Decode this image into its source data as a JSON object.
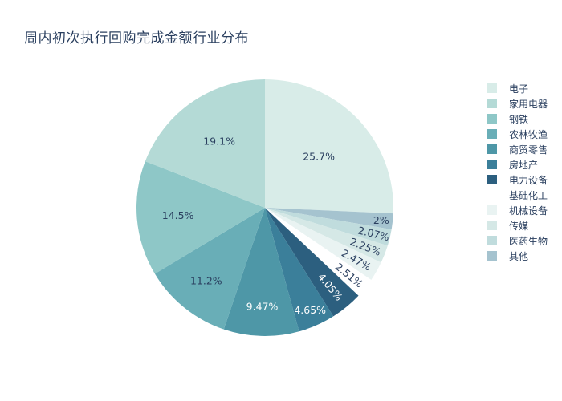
{
  "chart_data": {
    "type": "pie",
    "title": "周内初次执行回购完成金额行业分布",
    "legend_position": "right",
    "background_color": "#ffffff",
    "text_color": "#2a3f5f",
    "pie": {
      "sorted": true,
      "start": "top",
      "direction": "largest-clockwise-rest-counterclockwise"
    },
    "slices": [
      {
        "label": "电子",
        "value": 25.7,
        "display": "25.7%",
        "color": "#d8ece8",
        "label_color": "#2a3f5f",
        "label_r": 0.58,
        "rotate": false
      },
      {
        "label": "家用电器",
        "value": 19.1,
        "display": "19.1%",
        "color": "#b4dad6",
        "label_color": "#2a3f5f",
        "label_r": 0.63,
        "rotate": false
      },
      {
        "label": "钢铁",
        "value": 14.5,
        "display": "14.5%",
        "color": "#8ec7c7",
        "label_color": "#2a3f5f",
        "label_r": 0.68,
        "rotate": false
      },
      {
        "label": "农林牧渔",
        "value": 11.2,
        "display": "11.2%",
        "color": "#69aeb7",
        "label_color": "#2a3f5f",
        "label_r": 0.73,
        "rotate": false
      },
      {
        "label": "商贸零售",
        "value": 9.47,
        "display": "9.47%",
        "color": "#4e97a7",
        "label_color": "#ffffff",
        "label_r": 0.77,
        "rotate": false
      },
      {
        "label": "房地产",
        "value": 4.65,
        "display": "4.65%",
        "color": "#3b7f9a",
        "label_color": "#ffffff",
        "label_r": 0.87,
        "rotate": false
      },
      {
        "label": "电力设备",
        "value": 4.05,
        "display": "4.05%",
        "color": "#2c5f7f",
        "label_color": "#ffffff",
        "label_r": 0.8,
        "rotate": true
      },
      {
        "label": "基础化工",
        "value": 2.51,
        "display": "2.51%",
        "color": "#ffffff",
        "label_color": "#2a3f5f",
        "label_r": 0.84,
        "rotate": true
      },
      {
        "label": "机械设备",
        "value": 2.47,
        "display": "2.47%",
        "color": "#e9f3f2",
        "label_color": "#2a3f5f",
        "label_r": 0.82,
        "rotate": true
      },
      {
        "label": "传媒",
        "value": 2.25,
        "display": "2.25%",
        "color": "#d5e8e6",
        "label_color": "#2a3f5f",
        "label_r": 0.84,
        "rotate": true
      },
      {
        "label": "医药生物",
        "value": 2.07,
        "display": "2.07%",
        "color": "#c0dcdd",
        "label_color": "#2a3f5f",
        "label_r": 0.87,
        "rotate": true
      },
      {
        "label": "其他",
        "value": 2.0,
        "display": "2%",
        "color": "#a5c3cf",
        "label_color": "#2a3f5f",
        "label_r": 0.91,
        "rotate": false
      }
    ]
  }
}
